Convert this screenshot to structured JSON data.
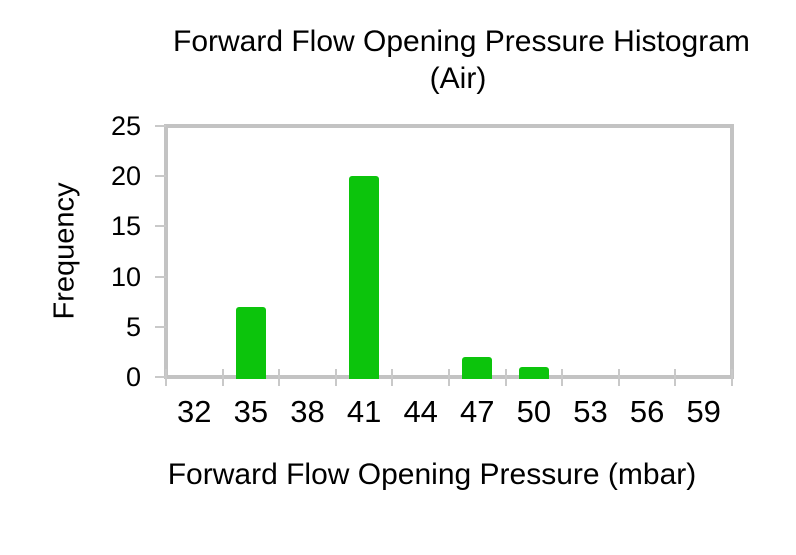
{
  "chart_data": {
    "type": "bar",
    "title": "Forward Flow Opening Pressure Histogram",
    "subtitle": "(Air)",
    "xlabel": "Forward Flow Opening Pressure (mbar)",
    "ylabel": "Frequency",
    "categories": [
      "32",
      "35",
      "38",
      "41",
      "44",
      "47",
      "50",
      "53",
      "56",
      "59"
    ],
    "values": [
      0,
      7,
      0,
      20,
      0,
      2,
      1,
      0,
      0,
      0
    ],
    "ylim": [
      0,
      25
    ],
    "yticks": [
      0,
      5,
      10,
      15,
      20,
      25
    ],
    "grid": false,
    "legend": "none",
    "colors": {
      "bar": "#0CC40C",
      "axis_frame": "#C3C3C3",
      "tick_marks": "#C9C9C9",
      "text": "#000000",
      "background": "#FFFFFF"
    }
  }
}
